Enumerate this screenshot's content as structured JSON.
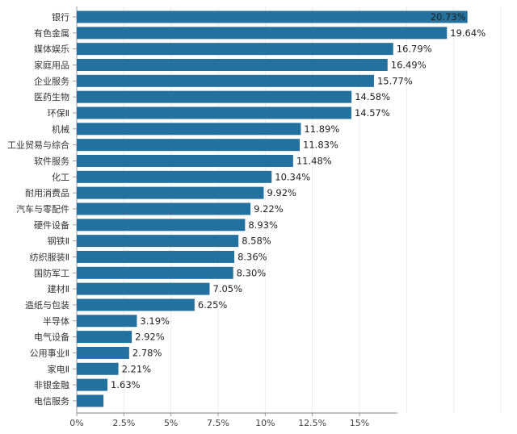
{
  "chart_data": {
    "type": "bar",
    "orientation": "horizontal",
    "title": "",
    "xlabel": "",
    "ylabel": "",
    "categories": [
      "银行",
      "有色金属",
      "媒体娱乐",
      "家庭用品",
      "企业服务",
      "医药生物",
      "环保Ⅱ",
      "机械",
      "工业贸易与综合",
      "软件服务",
      "化工",
      "耐用消费品",
      "汽车与零配件",
      "硬件设备",
      "钢铁Ⅱ",
      "纺织服装Ⅱ",
      "国防军工",
      "建材Ⅱ",
      "造纸与包装",
      "半导体",
      "电气设备",
      "公用事业Ⅱ",
      "家电Ⅱ",
      "非银金融",
      "电信服务"
    ],
    "values": [
      20.73,
      19.64,
      16.79,
      16.49,
      15.77,
      14.58,
      14.57,
      11.89,
      11.83,
      11.48,
      10.34,
      9.92,
      9.22,
      8.93,
      8.58,
      8.36,
      8.3,
      7.05,
      6.25,
      3.19,
      2.92,
      2.78,
      2.21,
      1.63,
      1.42
    ],
    "labels": [
      "20.73%",
      "19.64%",
      "16.79%",
      "16.49%",
      "15.77%",
      "14.58%",
      "14.57%",
      "11.89%",
      "11.83%",
      "11.48%",
      "10.34%",
      "9.92%",
      "9.22%",
      "8.93%",
      "8.58%",
      "8.36%",
      "8.30%",
      "7.05%",
      "6.25%",
      "3.19%",
      "2.92%",
      "2.78%",
      "2.21%",
      "1.63%",
      null
    ],
    "xticks": [
      0,
      2.5,
      5,
      7.5,
      10,
      12.5,
      15
    ],
    "xtick_labels": [
      "0%",
      "2.5%",
      "5%",
      "7.5%",
      "10%",
      "12.5%",
      "15%"
    ],
    "xlim": [
      0,
      22.5
    ],
    "grid": true,
    "bar_color": "#23719f"
  }
}
